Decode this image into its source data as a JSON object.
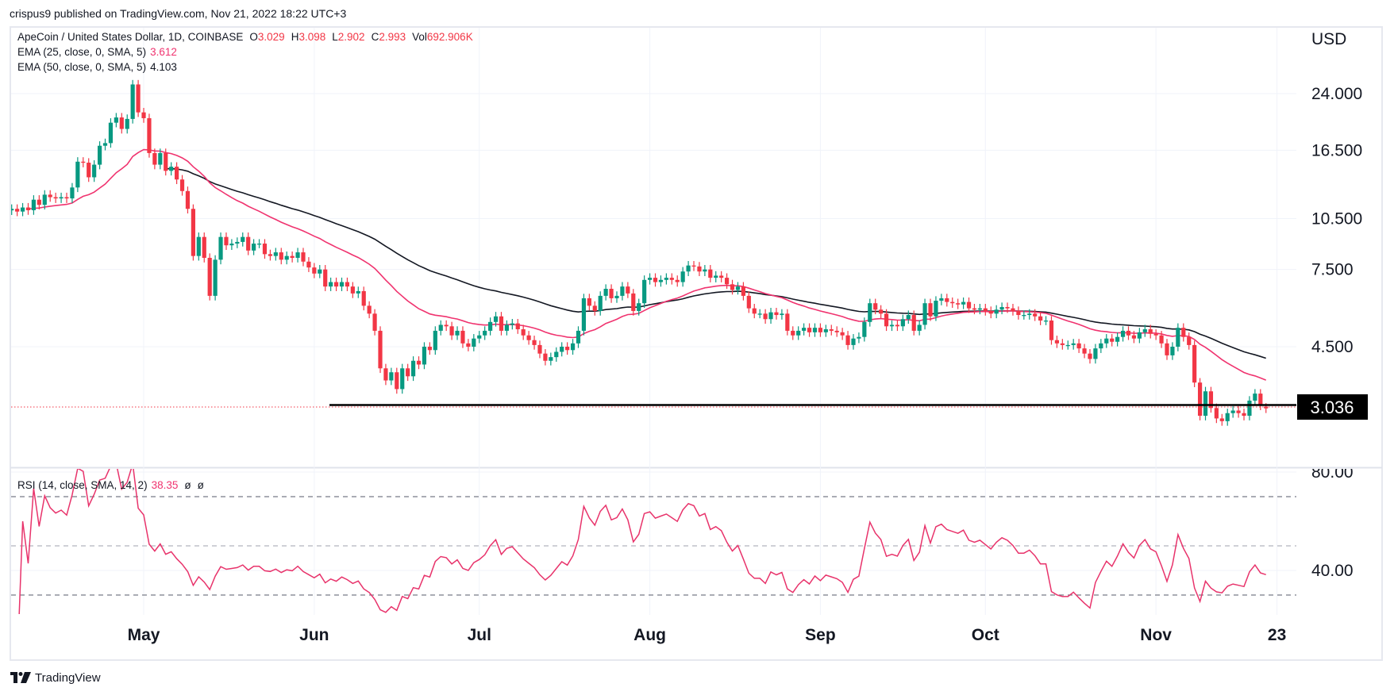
{
  "header": {
    "published": "crispus9 published on TradingView.com, Nov 21, 2022 18:22 UTC+3"
  },
  "legend": {
    "symbol": "ApeCoin / United States Dollar, 1D, COINBASE",
    "ohlc": [
      {
        "label": "O",
        "value": "3.029"
      },
      {
        "label": "H",
        "value": "3.098"
      },
      {
        "label": "L",
        "value": "2.902"
      },
      {
        "label": "C",
        "value": "2.993"
      },
      {
        "label": "Vol",
        "value": "692.906K"
      }
    ],
    "ema25": {
      "label": "EMA (25, close, 0, SMA, 5)",
      "value": "3.612"
    },
    "ema50": {
      "label": "EMA (50, close, 0, SMA, 5)",
      "value": "4.103"
    },
    "rsi": {
      "label": "RSI (14, close, SMA, 14, 2)",
      "value": "38.35",
      "extra": [
        "ø",
        "ø"
      ]
    }
  },
  "footer": {
    "brand": "TradingView"
  },
  "chart_data": {
    "type": "candlestick",
    "title": "ApeCoin / United States Dollar, 1D, COINBASE",
    "interval": "1D",
    "colors": {
      "up": "#089981",
      "down": "#f23645",
      "ema25": "#f0336f",
      "ema50": "#131722",
      "rsi": "#e8336b",
      "support": "#000000",
      "last_price": "#000000"
    },
    "price_axis": {
      "unit": "USD",
      "scale": "log",
      "ticks": [
        24,
        16.5,
        10.5,
        7.5,
        4.5
      ],
      "tick_labels": [
        "24.000",
        "16.500",
        "10.500",
        "7.500",
        "4.500"
      ]
    },
    "last_price": {
      "value": 3.036,
      "label": "3.036"
    },
    "support_level": 3.036,
    "time_axis": {
      "labels": [
        {
          "label": "May",
          "day_index": 24
        },
        {
          "label": "Jun",
          "day_index": 55
        },
        {
          "label": "Jul",
          "day_index": 85
        },
        {
          "label": "Aug",
          "day_index": 116
        },
        {
          "label": "Sep",
          "day_index": 147
        },
        {
          "label": "Oct",
          "day_index": 177
        },
        {
          "label": "Nov",
          "day_index": 208
        },
        {
          "label": "23",
          "day_index": 230
        }
      ]
    },
    "last_candle": {
      "open": 3.029,
      "high": 3.098,
      "low": 2.902,
      "close": 2.993,
      "volume": "692.906K"
    },
    "close": [
      11.2,
      11.0,
      11.3,
      11.1,
      11.9,
      11.5,
      12.3,
      12.1,
      12.0,
      12.1,
      12.0,
      12.9,
      15.3,
      15.2,
      13.8,
      15.0,
      17.0,
      17.3,
      19.8,
      20.5,
      19.0,
      20.3,
      25.5,
      21.2,
      20.4,
      16.2,
      15.0,
      16.2,
      14.4,
      14.8,
      13.6,
      12.6,
      11.2,
      8.2,
      9.3,
      8.1,
      6.3,
      8.0,
      9.3,
      8.8,
      8.9,
      9.0,
      9.3,
      8.5,
      8.9,
      8.9,
      8.3,
      8.2,
      8.4,
      8.0,
      8.2,
      8.1,
      8.4,
      7.9,
      7.6,
      7.3,
      7.5,
      6.7,
      6.9,
      6.7,
      6.9,
      6.7,
      6.4,
      6.5,
      5.9,
      5.6,
      5.0,
      3.9,
      3.6,
      3.8,
      3.4,
      3.9,
      3.7,
      4.1,
      4.0,
      4.5,
      4.4,
      5.0,
      5.2,
      5.15,
      4.85,
      5.0,
      4.6,
      4.5,
      4.75,
      4.85,
      5.0,
      5.3,
      5.5,
      5.0,
      5.2,
      5.25,
      5.05,
      4.85,
      4.7,
      4.55,
      4.3,
      4.1,
      4.2,
      4.35,
      4.5,
      4.4,
      4.6,
      5.0,
      6.2,
      5.9,
      5.7,
      6.3,
      6.6,
      6.2,
      6.3,
      6.7,
      6.4,
      5.7,
      6.0,
      7.0,
      7.1,
      6.9,
      7.0,
      7.1,
      7.0,
      6.9,
      7.4,
      7.7,
      7.65,
      7.4,
      7.5,
      7.1,
      7.2,
      7.1,
      6.8,
      6.55,
      6.7,
      6.3,
      5.8,
      5.6,
      5.6,
      5.4,
      5.65,
      5.55,
      5.6,
      5.0,
      4.85,
      5.0,
      5.1,
      4.95,
      5.1,
      4.95,
      5.05,
      5.0,
      4.95,
      4.85,
      4.55,
      4.75,
      4.8,
      5.3,
      6.0,
      5.75,
      5.6,
      5.15,
      5.2,
      5.15,
      5.4,
      5.55,
      5.0,
      5.2,
      6.0,
      5.5,
      6.1,
      6.2,
      6.05,
      6.0,
      5.95,
      6.05,
      5.8,
      5.75,
      5.8,
      5.7,
      5.6,
      5.75,
      5.85,
      5.8,
      5.7,
      5.55,
      5.55,
      5.6,
      5.5,
      5.35,
      5.35,
      4.7,
      4.6,
      4.55,
      4.55,
      4.6,
      4.45,
      4.3,
      4.15,
      4.45,
      4.6,
      4.75,
      4.65,
      4.8,
      5.0,
      4.85,
      4.75,
      4.95,
      5.05,
      4.9,
      4.85,
      4.6,
      4.25,
      4.5,
      5.1,
      4.8,
      4.55,
      3.55,
      2.85,
      3.35,
      3.0,
      2.8,
      2.75,
      2.9,
      2.95,
      2.9,
      2.85,
      3.15,
      3.3,
      3.05,
      2.993
    ],
    "indicators": {
      "ema25": {
        "length": 25,
        "value": 3.612
      },
      "ema50": {
        "length": 50,
        "value": 4.103
      },
      "rsi": {
        "length": 14,
        "value": 38.35,
        "levels": [
          70,
          50,
          30
        ],
        "ticks": [
          80,
          40
        ],
        "tick_labels": [
          "80.00",
          "40.00"
        ]
      }
    }
  }
}
